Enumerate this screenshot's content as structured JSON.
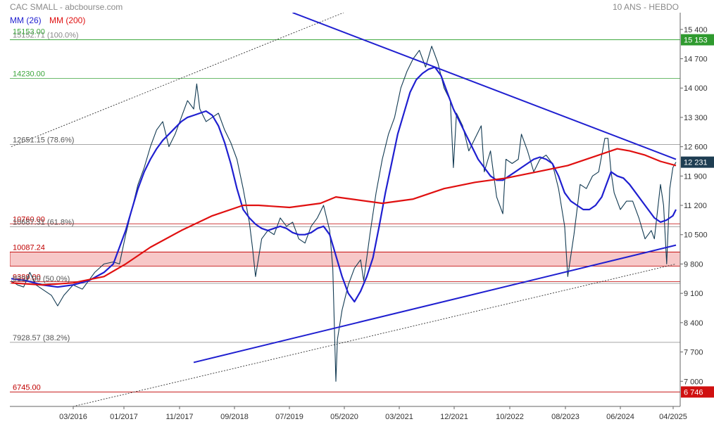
{
  "header": {
    "title": "CAC SMALL - abcbourse.com",
    "period": "10 ANS - HEBDO"
  },
  "legend": [
    {
      "name": "MM (26)",
      "color": "#1f1fd0"
    },
    {
      "name": "MM (200)",
      "color": "#e01010"
    }
  ],
  "chart_data": {
    "type": "line",
    "x_tick_labels": [
      "03/2016",
      "01/2017",
      "11/2017",
      "09/2018",
      "07/2019",
      "05/2020",
      "03/2021",
      "12/2021",
      "10/2022",
      "08/2023",
      "06/2024",
      "04/2025"
    ],
    "y_ticks": [
      7000,
      7700,
      8400,
      9100,
      9800,
      10500,
      11200,
      11900,
      12600,
      13300,
      14000,
      14700,
      15400
    ],
    "y_tick_labels": [
      "7 000",
      "7 700",
      "8 400",
      "9 100",
      "9 800",
      "10 500",
      "11 200",
      "11 900",
      "12 600",
      "13 300",
      "14 000",
      "14 700",
      "15 400"
    ],
    "ylim": [
      6400,
      15800
    ],
    "last_value": 12231,
    "last_value_label": "12 231",
    "max_value_label": "15 153",
    "min_value_label": "6 746",
    "price_points": [
      [
        0,
        9400
      ],
      [
        4,
        9300
      ],
      [
        8,
        9250
      ],
      [
        12,
        9600
      ],
      [
        16,
        9300
      ],
      [
        20,
        9200
      ],
      [
        26,
        9050
      ],
      [
        30,
        8800
      ],
      [
        34,
        9050
      ],
      [
        40,
        9300
      ],
      [
        46,
        9200
      ],
      [
        50,
        9400
      ],
      [
        54,
        9600
      ],
      [
        60,
        9800
      ],
      [
        66,
        9850
      ],
      [
        70,
        9800
      ],
      [
        74,
        10500
      ],
      [
        78,
        11100
      ],
      [
        82,
        11700
      ],
      [
        86,
        12100
      ],
      [
        90,
        12600
      ],
      [
        94,
        13000
      ],
      [
        98,
        13200
      ],
      [
        102,
        12600
      ],
      [
        106,
        12900
      ],
      [
        110,
        13300
      ],
      [
        114,
        13700
      ],
      [
        118,
        13500
      ],
      [
        120,
        14100
      ],
      [
        122,
        13500
      ],
      [
        126,
        13200
      ],
      [
        130,
        13300
      ],
      [
        134,
        13400
      ],
      [
        138,
        13000
      ],
      [
        142,
        12700
      ],
      [
        146,
        12300
      ],
      [
        150,
        11600
      ],
      [
        154,
        10800
      ],
      [
        156,
        10200
      ],
      [
        158,
        9500
      ],
      [
        162,
        10400
      ],
      [
        166,
        10600
      ],
      [
        170,
        10500
      ],
      [
        174,
        10900
      ],
      [
        178,
        10700
      ],
      [
        182,
        10800
      ],
      [
        186,
        10400
      ],
      [
        190,
        10300
      ],
      [
        194,
        10700
      ],
      [
        198,
        10900
      ],
      [
        202,
        11200
      ],
      [
        206,
        10600
      ],
      [
        208,
        9700
      ],
      [
        210,
        7000
      ],
      [
        211,
        8000
      ],
      [
        214,
        8700
      ],
      [
        218,
        9300
      ],
      [
        222,
        9700
      ],
      [
        226,
        9900
      ],
      [
        228,
        9400
      ],
      [
        232,
        10500
      ],
      [
        236,
        11500
      ],
      [
        240,
        12300
      ],
      [
        244,
        12900
      ],
      [
        248,
        13300
      ],
      [
        252,
        14000
      ],
      [
        256,
        14400
      ],
      [
        260,
        14700
      ],
      [
        264,
        14900
      ],
      [
        268,
        14500
      ],
      [
        272,
        15000
      ],
      [
        276,
        14600
      ],
      [
        280,
        14000
      ],
      [
        284,
        13700
      ],
      [
        286,
        12100
      ],
      [
        288,
        13400
      ],
      [
        292,
        13100
      ],
      [
        296,
        12500
      ],
      [
        300,
        12800
      ],
      [
        304,
        13100
      ],
      [
        306,
        12000
      ],
      [
        310,
        12500
      ],
      [
        314,
        11400
      ],
      [
        318,
        11000
      ],
      [
        320,
        12300
      ],
      [
        324,
        12200
      ],
      [
        328,
        12300
      ],
      [
        330,
        12900
      ],
      [
        334,
        12500
      ],
      [
        338,
        12000
      ],
      [
        342,
        12300
      ],
      [
        346,
        12400
      ],
      [
        350,
        12200
      ],
      [
        354,
        11600
      ],
      [
        358,
        10700
      ],
      [
        360,
        9500
      ],
      [
        362,
        10000
      ],
      [
        364,
        10500
      ],
      [
        368,
        11700
      ],
      [
        372,
        11600
      ],
      [
        376,
        11900
      ],
      [
        380,
        12000
      ],
      [
        384,
        12800
      ],
      [
        386,
        12800
      ],
      [
        388,
        12000
      ],
      [
        390,
        11500
      ],
      [
        394,
        11100
      ],
      [
        398,
        11300
      ],
      [
        402,
        11300
      ],
      [
        406,
        10900
      ],
      [
        410,
        10400
      ],
      [
        414,
        10600
      ],
      [
        416,
        10400
      ],
      [
        420,
        11700
      ],
      [
        422,
        11200
      ],
      [
        424,
        9800
      ],
      [
        426,
        11600
      ],
      [
        428,
        12100
      ],
      [
        430,
        12231
      ]
    ],
    "series": [
      {
        "name": "MM (26)",
        "color": "#1f1fd0",
        "points": [
          [
            0,
            9450
          ],
          [
            10,
            9400
          ],
          [
            20,
            9300
          ],
          [
            30,
            9250
          ],
          [
            40,
            9300
          ],
          [
            50,
            9400
          ],
          [
            60,
            9600
          ],
          [
            66,
            9800
          ],
          [
            70,
            10200
          ],
          [
            74,
            10600
          ],
          [
            78,
            11100
          ],
          [
            82,
            11600
          ],
          [
            86,
            12000
          ],
          [
            90,
            12300
          ],
          [
            94,
            12550
          ],
          [
            98,
            12750
          ],
          [
            102,
            12900
          ],
          [
            106,
            13050
          ],
          [
            110,
            13200
          ],
          [
            114,
            13300
          ],
          [
            118,
            13350
          ],
          [
            122,
            13400
          ],
          [
            126,
            13450
          ],
          [
            130,
            13350
          ],
          [
            134,
            13100
          ],
          [
            138,
            12700
          ],
          [
            142,
            12200
          ],
          [
            146,
            11600
          ],
          [
            150,
            11100
          ],
          [
            154,
            10900
          ],
          [
            158,
            10750
          ],
          [
            162,
            10650
          ],
          [
            166,
            10600
          ],
          [
            170,
            10650
          ],
          [
            174,
            10700
          ],
          [
            178,
            10650
          ],
          [
            182,
            10550
          ],
          [
            186,
            10500
          ],
          [
            190,
            10500
          ],
          [
            194,
            10550
          ],
          [
            198,
            10650
          ],
          [
            202,
            10700
          ],
          [
            206,
            10500
          ],
          [
            210,
            10000
          ],
          [
            214,
            9500
          ],
          [
            218,
            9100
          ],
          [
            222,
            8900
          ],
          [
            226,
            9150
          ],
          [
            230,
            9500
          ],
          [
            234,
            9950
          ],
          [
            238,
            10700
          ],
          [
            242,
            11500
          ],
          [
            246,
            12200
          ],
          [
            250,
            12900
          ],
          [
            254,
            13400
          ],
          [
            258,
            13900
          ],
          [
            262,
            14200
          ],
          [
            266,
            14350
          ],
          [
            270,
            14450
          ],
          [
            274,
            14500
          ],
          [
            278,
            14300
          ],
          [
            282,
            13900
          ],
          [
            286,
            13500
          ],
          [
            290,
            13200
          ],
          [
            294,
            12900
          ],
          [
            298,
            12600
          ],
          [
            302,
            12300
          ],
          [
            306,
            12100
          ],
          [
            310,
            11900
          ],
          [
            314,
            11800
          ],
          [
            318,
            11800
          ],
          [
            322,
            11900
          ],
          [
            326,
            12000
          ],
          [
            330,
            12100
          ],
          [
            334,
            12200
          ],
          [
            338,
            12300
          ],
          [
            342,
            12350
          ],
          [
            346,
            12300
          ],
          [
            350,
            12200
          ],
          [
            354,
            11900
          ],
          [
            358,
            11500
          ],
          [
            362,
            11300
          ],
          [
            366,
            11200
          ],
          [
            370,
            11100
          ],
          [
            374,
            11100
          ],
          [
            378,
            11200
          ],
          [
            382,
            11400
          ],
          [
            386,
            11800
          ],
          [
            388,
            12000
          ],
          [
            392,
            11900
          ],
          [
            396,
            11850
          ],
          [
            400,
            11700
          ],
          [
            404,
            11500
          ],
          [
            408,
            11300
          ],
          [
            412,
            11100
          ],
          [
            416,
            10900
          ],
          [
            420,
            10800
          ],
          [
            424,
            10850
          ],
          [
            428,
            10950
          ],
          [
            430,
            11100
          ]
        ]
      },
      {
        "name": "MM (200)",
        "color": "#e01010",
        "points": [
          [
            0,
            9350
          ],
          [
            20,
            9300
          ],
          [
            40,
            9350
          ],
          [
            60,
            9500
          ],
          [
            74,
            9800
          ],
          [
            90,
            10200
          ],
          [
            110,
            10600
          ],
          [
            130,
            10950
          ],
          [
            150,
            11200
          ],
          [
            160,
            11200
          ],
          [
            180,
            11150
          ],
          [
            200,
            11250
          ],
          [
            210,
            11400
          ],
          [
            220,
            11350
          ],
          [
            240,
            11250
          ],
          [
            260,
            11350
          ],
          [
            280,
            11600
          ],
          [
            300,
            11750
          ],
          [
            320,
            11850
          ],
          [
            340,
            12000
          ],
          [
            360,
            12150
          ],
          [
            380,
            12400
          ],
          [
            392,
            12550
          ],
          [
            400,
            12500
          ],
          [
            410,
            12400
          ],
          [
            420,
            12250
          ],
          [
            430,
            12150
          ]
        ]
      }
    ],
    "horizontal_lines": [
      {
        "label": "15152.71  (100.0%)",
        "value": 15153,
        "color": "#3aa53a",
        "label_color": "#888888"
      },
      {
        "label": "15153.00",
        "value": 15153,
        "color": "#3aa53a",
        "label_color": "#3aa53a"
      },
      {
        "label": "14230.00",
        "value": 14230,
        "color": "#3aa53a",
        "label_color": "#3aa53a"
      },
      {
        "label": "12651.15  (78.6%)",
        "value": 12651,
        "color": "#888888",
        "label_color": "#555555"
      },
      {
        "label": "10760.00",
        "value": 10760,
        "color": "#c00000",
        "label_color": "#c00000"
      },
      {
        "label": "10687.31  (61.8%)",
        "value": 10687,
        "color": "#888888",
        "label_color": "#555555"
      },
      {
        "label": "10087.24",
        "value": 10087,
        "color": "#c00000",
        "label_color": "#c00000"
      },
      {
        "label": "9380.00",
        "value": 9380,
        "color": "#c00000",
        "label_color": "#c00000"
      },
      {
        "label": "9337.00  (50.0%)",
        "value": 9337,
        "color": "#888888",
        "label_color": "#555555"
      },
      {
        "label": "7928.57  (38.2%)",
        "value": 7929,
        "color": "#888888",
        "label_color": "#555555"
      },
      {
        "label": "6745.00",
        "value": 6745,
        "color": "#c00000",
        "label_color": "#c00000"
      }
    ],
    "support_zone": {
      "from": 9750,
      "to": 10087,
      "color": "#f7c8c8"
    },
    "trendlines": [
      {
        "name": "resistance-trendline",
        "color": "#1f1fd0",
        "points": [
          [
            182,
            15800
          ],
          [
            430,
            12300
          ]
        ]
      },
      {
        "name": "support-trendline",
        "color": "#1f1fd0",
        "points": [
          [
            118,
            7450
          ],
          [
            430,
            10250
          ]
        ]
      },
      {
        "name": "upper-channel-line",
        "color": "#333333",
        "dashed": true,
        "points": [
          [
            0,
            12600
          ],
          [
            215,
            15800
          ]
        ]
      },
      {
        "name": "lower-channel-line",
        "color": "#333333",
        "dashed": true,
        "points": [
          [
            40,
            6400
          ],
          [
            430,
            9800
          ]
        ]
      }
    ]
  }
}
